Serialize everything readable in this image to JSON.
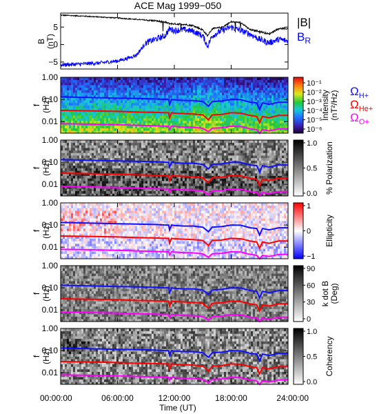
{
  "title": "ACE Mag 1999−050",
  "x_axis": {
    "label": "Time (UT)",
    "ticks": [
      "00:00:00",
      "06:00:00",
      "12:00:00",
      "18:00:00",
      "24:00:00"
    ],
    "range_hours": [
      0,
      24
    ]
  },
  "colors": {
    "bmag": "#000000",
    "br": "#0000ff",
    "h_plus": "#1010ff",
    "he_plus": "#ff0000",
    "o_plus": "#ff00ff"
  },
  "legends": {
    "bmag": "|B|",
    "br_main": "B",
    "br_sub": "R",
    "omega": "Ω",
    "h_sub": "H+",
    "he_sub": "He+",
    "o_sub": "O+"
  },
  "chart_data": [
    {
      "type": "line",
      "panel": "field",
      "ylabel": "B",
      "yunit": "(nT)",
      "ylim": [
        -7,
        9
      ],
      "yticks": [
        "5",
        "0",
        "−5"
      ],
      "ytick_values": [
        5,
        0,
        -5
      ],
      "series": [
        {
          "name": "|B|",
          "x": [
            0,
            2,
            4,
            6,
            8,
            10,
            11,
            11.5,
            12,
            13,
            14,
            15,
            15.5,
            16,
            17,
            18,
            19,
            20,
            21,
            22,
            23,
            24
          ],
          "values": [
            8.4,
            8.2,
            7.9,
            7.6,
            7.2,
            6.8,
            6.4,
            6.0,
            5.9,
            5.8,
            5.4,
            4.2,
            2.5,
            4.5,
            4.9,
            6.5,
            6.3,
            4.2,
            3.8,
            3.0,
            4.6,
            4.5
          ]
        },
        {
          "name": "BR",
          "x": [
            0,
            2,
            4,
            6,
            7,
            8,
            9,
            10,
            11,
            11.5,
            12,
            13,
            14,
            15,
            15.5,
            16,
            17,
            18,
            19,
            20,
            21,
            22,
            23,
            24
          ],
          "values": [
            -5.8,
            -5.6,
            -5.3,
            -4.7,
            -4.0,
            -3.0,
            0.5,
            1.5,
            2.5,
            4.5,
            4.0,
            4.3,
            3.8,
            2.5,
            -0.5,
            2.5,
            4.0,
            5.0,
            4.0,
            3.0,
            1.5,
            0.5,
            1.5,
            1.0
          ]
        }
      ]
    },
    {
      "type": "heatmap",
      "panel": "intensity",
      "ylabel": "f",
      "yunit": "(Hz)",
      "ylim": [
        0.003,
        1.0
      ],
      "yscale": "log",
      "yticks": [
        "1.00",
        "0.10",
        "0.01"
      ],
      "ytick_values": [
        1.0,
        0.1,
        0.01
      ],
      "colorbar": {
        "label": "Intensity",
        "unit": "(nT²/Hz)",
        "palette": "rainbow",
        "ticks": [
          "10⁻¹",
          "10⁻²",
          "10⁻³",
          "10⁻⁴",
          "10⁻⁵",
          "10⁻⁶"
        ]
      }
    },
    {
      "type": "heatmap",
      "panel": "polarization",
      "ylabel": "f",
      "yunit": "(Hz)",
      "ylim": [
        0.003,
        1.0
      ],
      "yscale": "log",
      "yticks": [
        "1.00",
        "0.10",
        "0.01"
      ],
      "ytick_values": [
        1.0,
        0.1,
        0.01
      ],
      "colorbar": {
        "label": "% Polarization",
        "unit": "",
        "palette": "gray",
        "ticks": [
          "1.0",
          "0.5",
          "0.0"
        ]
      }
    },
    {
      "type": "heatmap",
      "panel": "ellipticity",
      "ylabel": "f",
      "yunit": "(Hz)",
      "ylim": [
        0.003,
        1.0
      ],
      "yscale": "log",
      "yticks": [
        "1.00",
        "0.10",
        "0.01"
      ],
      "ytick_values": [
        1.0,
        0.1,
        0.01
      ],
      "colorbar": {
        "label": "Ellipticity",
        "unit": "",
        "palette": "bluewhitered",
        "ticks": [
          "1",
          "0",
          "−1"
        ]
      }
    },
    {
      "type": "heatmap",
      "panel": "kdotb",
      "ylabel": "f",
      "yunit": "(Hz)",
      "ylim": [
        0.003,
        1.0
      ],
      "yscale": "log",
      "yticks": [
        "1.00",
        "0.10",
        "0.01"
      ],
      "ytick_values": [
        1.0,
        0.1,
        0.01
      ],
      "colorbar": {
        "label": "k dot B",
        "unit": "(Deg)",
        "palette": "gray",
        "ticks": [
          "90",
          "60",
          "30",
          "0"
        ]
      }
    },
    {
      "type": "heatmap",
      "panel": "coherency",
      "ylabel": "f",
      "yunit": "(Hz)",
      "ylim": [
        0.003,
        1.0
      ],
      "yscale": "log",
      "yticks": [
        "1.00",
        "0.10",
        "0.01"
      ],
      "ytick_values": [
        1.0,
        0.1,
        0.01
      ],
      "colorbar": {
        "label": "Coherency",
        "unit": "",
        "palette": "gray",
        "ticks": [
          "1.0",
          "0.5",
          "0.0"
        ]
      }
    }
  ],
  "gyrofrequency_lines": [
    {
      "name": "H+",
      "color": "#1010ff",
      "x": [
        0,
        2,
        4,
        6,
        8,
        10,
        11,
        11.4,
        11.5,
        11.7,
        12,
        13,
        14,
        15,
        15.6,
        16,
        17,
        18,
        19,
        20,
        20.7,
        21,
        21.3,
        22,
        23,
        24
      ],
      "values_hz": [
        0.13,
        0.125,
        0.12,
        0.115,
        0.11,
        0.105,
        0.1,
        0.1,
        0.06,
        0.1,
        0.095,
        0.09,
        0.09,
        0.08,
        0.05,
        0.08,
        0.085,
        0.1,
        0.098,
        0.075,
        0.07,
        0.035,
        0.07,
        0.06,
        0.075,
        0.075
      ]
    },
    {
      "name": "He+",
      "color": "#ff0000",
      "x": [
        0,
        2,
        4,
        6,
        8,
        10,
        11,
        11.4,
        11.5,
        11.7,
        12,
        13,
        14,
        15,
        15.6,
        16,
        17,
        18,
        19,
        20,
        20.7,
        21,
        21.3,
        22,
        23,
        24
      ],
      "values_hz": [
        0.032,
        0.031,
        0.03,
        0.029,
        0.027,
        0.026,
        0.025,
        0.025,
        0.015,
        0.025,
        0.024,
        0.023,
        0.022,
        0.02,
        0.012,
        0.02,
        0.021,
        0.025,
        0.024,
        0.019,
        0.017,
        0.009,
        0.017,
        0.015,
        0.019,
        0.019
      ]
    },
    {
      "name": "O+",
      "color": "#ff00ff",
      "x": [
        0,
        2,
        4,
        6,
        8,
        10,
        11,
        11.4,
        11.5,
        11.7,
        12,
        13,
        14,
        15,
        15.6,
        16,
        17,
        18,
        19,
        20,
        20.7,
        21,
        21.3,
        22,
        23,
        24
      ],
      "values_hz": [
        0.008,
        0.0078,
        0.0075,
        0.0072,
        0.0068,
        0.0065,
        0.0062,
        0.0062,
        0.0045,
        0.0062,
        0.006,
        0.0057,
        0.0055,
        0.005,
        0.0035,
        0.005,
        0.0053,
        0.0062,
        0.006,
        0.0047,
        0.0043,
        0.003,
        0.0043,
        0.0038,
        0.0047,
        0.0047
      ]
    }
  ]
}
